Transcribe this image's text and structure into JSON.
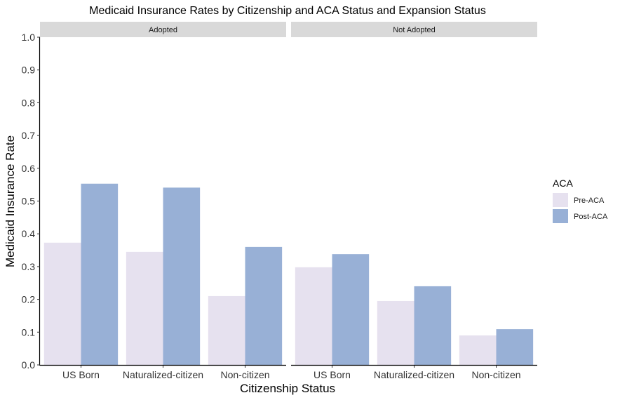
{
  "chart_data": {
    "type": "bar",
    "title": "Medicaid Insurance Rates by Citizenship and ACA Status and Expansion Status",
    "xlabel": "Citizenship Status",
    "ylabel": "Medicaid Insurance Rate",
    "ylim": [
      0,
      1.0
    ],
    "yticks": [
      "0.0",
      "0.1",
      "0.2",
      "0.3",
      "0.4",
      "0.5",
      "0.6",
      "0.7",
      "0.8",
      "0.9",
      "1.0"
    ],
    "categories": [
      "US Born",
      "Naturalized-citizen",
      "Non-citizen"
    ],
    "legend": {
      "title": "ACA",
      "placement": "right",
      "entries": [
        {
          "name": "Pre-ACA",
          "color": "#e6e1ef"
        },
        {
          "name": "Post-ACA",
          "color": "#98b0d6"
        }
      ]
    },
    "facets": [
      {
        "name": "Adopted",
        "series": [
          {
            "name": "Pre-ACA",
            "values": [
              0.373,
              0.345,
              0.21
            ]
          },
          {
            "name": "Post-ACA",
            "values": [
              0.553,
              0.541,
              0.36
            ]
          }
        ]
      },
      {
        "name": "Not Adopted",
        "series": [
          {
            "name": "Pre-ACA",
            "values": [
              0.298,
              0.195,
              0.09
            ]
          },
          {
            "name": "Post-ACA",
            "values": [
              0.338,
              0.24,
              0.109
            ]
          }
        ]
      }
    ],
    "grid": false
  }
}
